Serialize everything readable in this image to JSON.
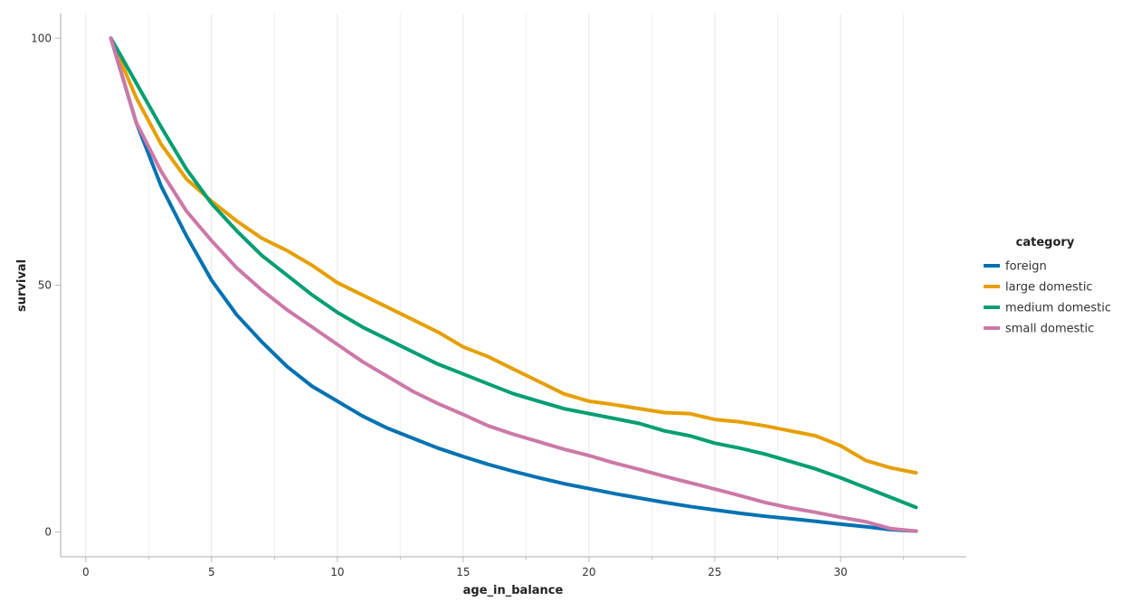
{
  "chart_data": {
    "type": "line",
    "xlabel": "age_in_balance",
    "ylabel": "survival",
    "xlim": [
      -1,
      35
    ],
    "ylim": [
      -5,
      105
    ],
    "x_ticks": [
      0,
      5,
      10,
      15,
      20,
      25,
      30
    ],
    "y_ticks": [
      0,
      50,
      100
    ],
    "grid": "vertical",
    "legend": {
      "title": "category",
      "position": "right"
    },
    "x": [
      1,
      2,
      3,
      4,
      5,
      6,
      7,
      8,
      9,
      10,
      11,
      12,
      13,
      14,
      15,
      16,
      17,
      18,
      19,
      20,
      21,
      22,
      23,
      24,
      25,
      26,
      27,
      28,
      29,
      30,
      31,
      32,
      33
    ],
    "series": [
      {
        "name": "foreign",
        "color": "#0072b2",
        "values": [
          100,
          83,
          70,
          60,
          51,
          44,
          38.5,
          33.5,
          29.5,
          26.5,
          23.5,
          21,
          19,
          17,
          15.3,
          13.7,
          12.3,
          11,
          9.8,
          8.8,
          7.8,
          6.9,
          6,
          5.2,
          4.5,
          3.8,
          3.2,
          2.7,
          2.2,
          1.6,
          1.1,
          0.5,
          0.2
        ]
      },
      {
        "name": "large domestic",
        "color": "#e69f00",
        "values": [
          100,
          88,
          78.5,
          71.5,
          67,
          63,
          59.5,
          57,
          54,
          50.5,
          48,
          45.5,
          43,
          40.5,
          37.5,
          35.5,
          33,
          30.5,
          28,
          26.5,
          25.8,
          25,
          24.2,
          24,
          22.8,
          22.3,
          21.5,
          20.5,
          19.5,
          17.5,
          14.5,
          13,
          12
        ]
      },
      {
        "name": "medium domestic",
        "color": "#009e73",
        "values": [
          100,
          91,
          82,
          73.5,
          66.5,
          61,
          56,
          52,
          48,
          44.5,
          41.5,
          39,
          36.5,
          34,
          32,
          30,
          28,
          26.5,
          25,
          24,
          23,
          22,
          20.5,
          19.5,
          18,
          17,
          15.8,
          14.3,
          12.8,
          11,
          9,
          7,
          5
        ]
      },
      {
        "name": "small domestic",
        "color": "#cc79a7",
        "values": [
          100,
          83,
          73,
          65,
          59,
          53.5,
          49,
          45,
          41.5,
          38,
          34.5,
          31.5,
          28.5,
          26,
          23.8,
          21.5,
          19.8,
          18.3,
          16.8,
          15.5,
          14,
          12.7,
          11.3,
          10,
          8.7,
          7.4,
          6,
          4.9,
          4,
          3,
          2.1,
          0.7,
          0.2
        ]
      }
    ]
  }
}
